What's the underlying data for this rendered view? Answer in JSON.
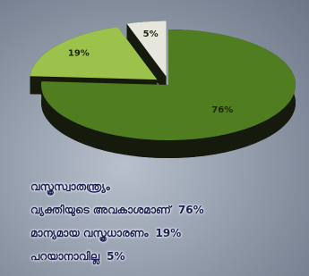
{
  "chart_data": {
    "type": "pie",
    "categories": [
      "വസ്ത്രസ്വാതന്ത്ര്യം\nവ്യക്തിയുടെ അവകാശമാണ്",
      "മാന്യമായ വസ്ത്രധാരണം",
      "പറയാനാവില്ല"
    ],
    "values": [
      76,
      19,
      5
    ],
    "value_labels": [
      "76%",
      "19%",
      "5%"
    ],
    "colors": [
      "#4f7d1f",
      "#9dc24c",
      "#e6e6dc"
    ]
  }
}
